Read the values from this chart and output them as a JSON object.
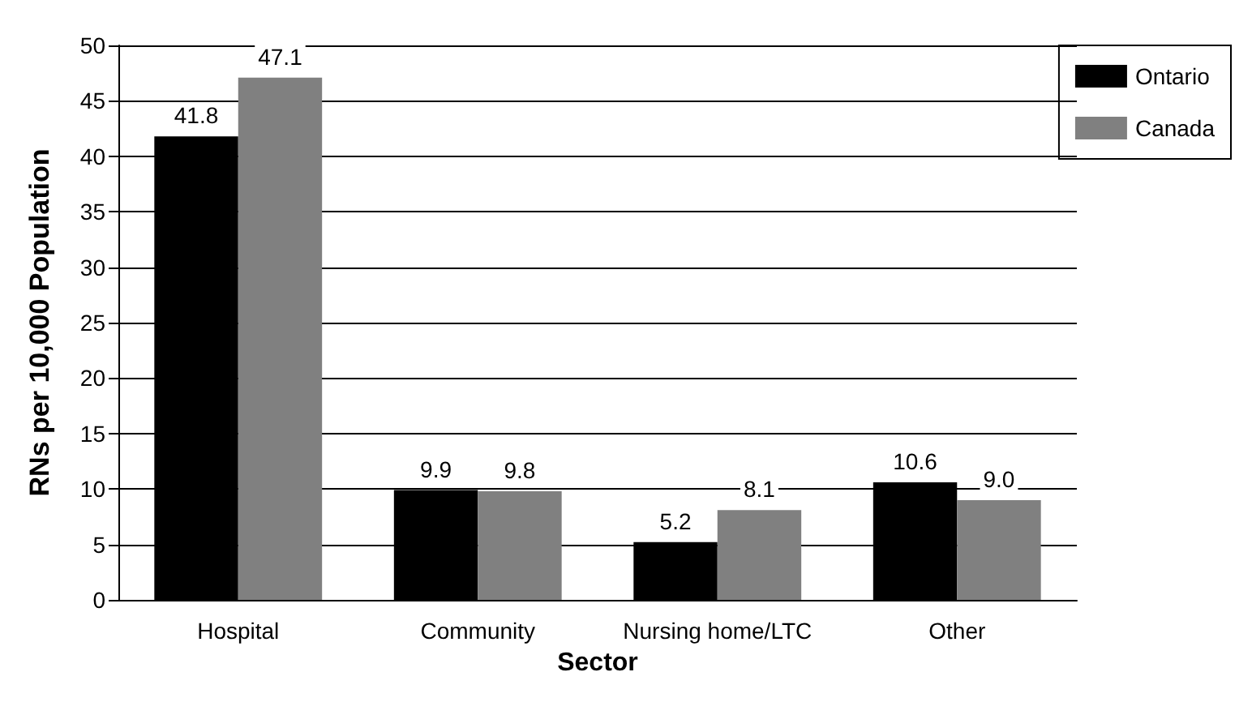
{
  "chart_data": {
    "type": "bar",
    "xlabel": "Sector",
    "ylabel": "RNs per 10,000 Population",
    "categories": [
      "Hospital",
      "Community",
      "Nursing home/LTC",
      "Other"
    ],
    "series": [
      {
        "name": "Ontario",
        "color": "#000000",
        "values": [
          41.8,
          9.9,
          5.2,
          10.6
        ],
        "value_labels": [
          "41.8",
          "9.9",
          "5.2",
          "10.6"
        ]
      },
      {
        "name": "Canada",
        "color": "#808080",
        "values": [
          47.1,
          9.8,
          8.1,
          9.0
        ],
        "value_labels": [
          "47.1",
          "9.8",
          "8.1",
          "9.0"
        ]
      }
    ],
    "ylim": [
      0,
      50
    ],
    "yticks": [
      0,
      5,
      10,
      15,
      20,
      25,
      30,
      35,
      40,
      45,
      50
    ],
    "grid": "y",
    "legend": "top right"
  }
}
